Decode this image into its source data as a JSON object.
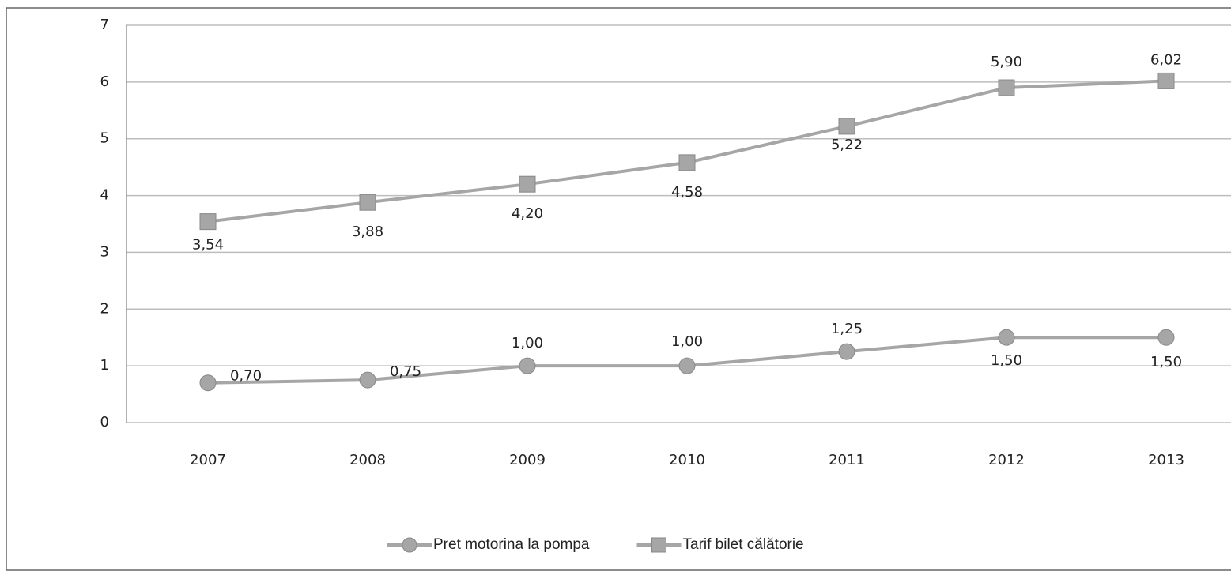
{
  "chart_data": {
    "type": "line",
    "categories": [
      "2007",
      "2008",
      "2009",
      "2010",
      "2011",
      "2012",
      "2013"
    ],
    "series": [
      {
        "name": "Pret motorina la pompa",
        "color": "#a6a6a6",
        "marker": "circle",
        "values": [
          0.7,
          0.75,
          1.0,
          1.0,
          1.25,
          1.5,
          1.5
        ],
        "value_labels": [
          "0,70",
          "0,75",
          "1,00",
          "1,00",
          "1,25",
          "1,50",
          "1,50"
        ]
      },
      {
        "name": "Tarif bilet călătorie",
        "color": "#a6a6a6",
        "marker": "square",
        "values": [
          3.54,
          3.88,
          4.2,
          4.58,
          5.22,
          5.9,
          6.02
        ],
        "value_labels": [
          "3,54",
          "3,88",
          "4,20",
          "4,58",
          "5,22",
          "5,90",
          "6,02"
        ]
      }
    ],
    "ylim": [
      0,
      7
    ],
    "yticks": [
      0,
      1,
      2,
      3,
      4,
      5,
      6,
      7
    ],
    "grid": true,
    "legend": "bottom"
  }
}
